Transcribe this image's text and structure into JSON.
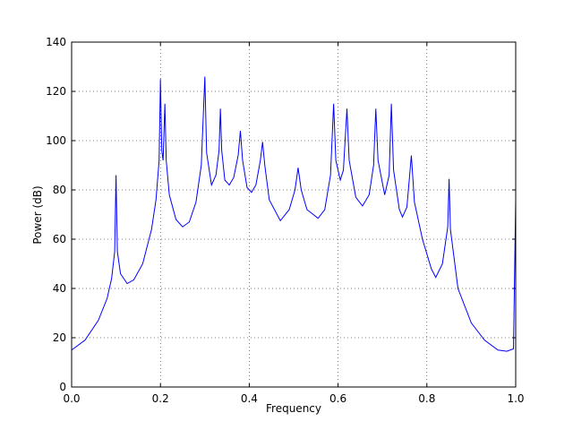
{
  "chart_data": {
    "type": "line",
    "x_label": "Frequency",
    "y_label": "Power (dB)",
    "x": [
      0.0,
      0.03,
      0.06,
      0.08,
      0.09,
      0.097,
      0.1,
      0.103,
      0.11,
      0.125,
      0.14,
      0.16,
      0.18,
      0.19,
      0.197,
      0.2,
      0.203,
      0.206,
      0.21,
      0.213,
      0.22,
      0.235,
      0.25,
      0.265,
      0.28,
      0.292,
      0.3,
      0.304,
      0.315,
      0.325,
      0.332,
      0.335,
      0.338,
      0.345,
      0.355,
      0.365,
      0.375,
      0.38,
      0.385,
      0.395,
      0.405,
      0.415,
      0.425,
      0.43,
      0.435,
      0.445,
      0.47,
      0.49,
      0.503,
      0.51,
      0.517,
      0.53,
      0.555,
      0.57,
      0.583,
      0.59,
      0.595,
      0.605,
      0.612,
      0.62,
      0.625,
      0.64,
      0.655,
      0.67,
      0.68,
      0.685,
      0.69,
      0.705,
      0.715,
      0.72,
      0.725,
      0.738,
      0.745,
      0.755,
      0.765,
      0.772,
      0.79,
      0.81,
      0.82,
      0.835,
      0.847,
      0.85,
      0.853,
      0.87,
      0.9,
      0.93,
      0.96,
      0.98,
      0.995,
      1.0
    ],
    "series": [
      {
        "color": "#0000ff",
        "values": [
          15,
          19,
          27,
          36,
          44,
          55,
          86,
          55,
          46,
          42,
          43.5,
          50,
          64,
          76,
          92,
          125,
          96,
          92,
          115,
          92,
          78,
          68,
          65,
          67,
          75,
          90,
          126,
          95,
          82,
          86,
          96,
          113,
          96,
          84,
          82,
          85,
          94,
          104,
          92,
          81,
          79,
          82,
          92,
          99.5,
          90,
          76,
          67.5,
          72,
          80,
          89,
          80,
          72,
          68.5,
          72,
          86,
          115,
          92,
          84,
          88,
          113,
          92,
          77,
          73.5,
          78,
          90,
          113,
          92,
          78,
          86,
          115,
          88,
          72,
          69,
          73,
          94,
          75,
          60,
          48,
          44.5,
          50,
          65,
          84.5,
          64,
          40,
          26,
          19,
          15,
          14.5,
          15.5,
          76
        ]
      }
    ],
    "xlim": [
      0,
      1
    ],
    "ylim": [
      0,
      140
    ],
    "xticks": [
      {
        "value": 0,
        "label": "0.0"
      },
      0.2,
      0.4,
      0.6,
      0.8,
      {
        "value": 1,
        "label": "1.0"
      }
    ],
    "yticks": [
      0,
      20,
      40,
      60,
      80,
      100,
      120,
      140
    ],
    "grid": true
  }
}
